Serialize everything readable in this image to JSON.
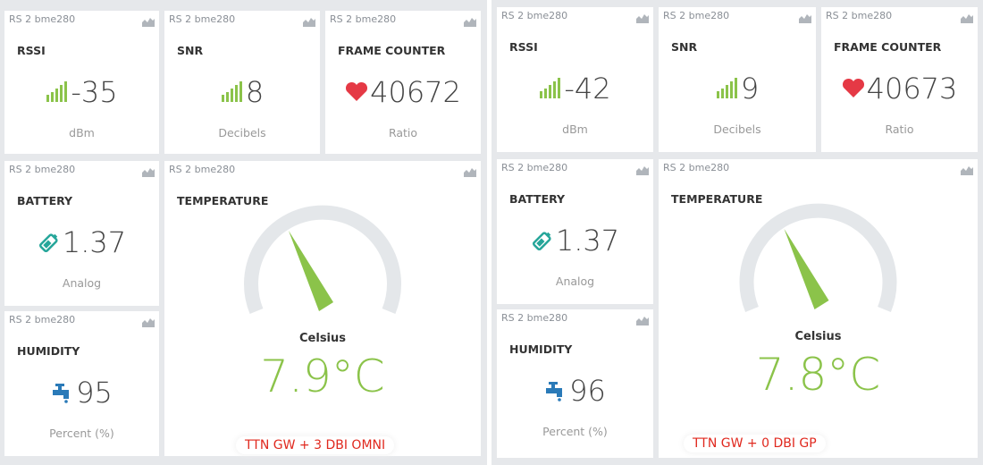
{
  "panels": [
    {
      "widgets": [
        {
          "source": "RS 2 bme280",
          "title": "RSSI",
          "value": "-35",
          "unit": "dBm"
        },
        {
          "source": "RS 2 bme280",
          "title": "SNR",
          "value": "8",
          "unit": "Decibels"
        },
        {
          "source": "RS 2 bme280",
          "title": "FRAME COUNTER",
          "value": "40672",
          "unit": "Ratio"
        },
        {
          "source": "RS 2 bme280",
          "title": "BATTERY",
          "value": "1.37",
          "unit": "Analog"
        },
        {
          "source": "RS 2 bme280",
          "title": "HUMIDITY",
          "value": "95",
          "unit": "Percent (%)"
        },
        {
          "source": "RS 2 bme280",
          "title": "TEMPERATURE",
          "value": "7.9°C",
          "unit": "Celsius"
        }
      ],
      "caption": "TTN GW + 3 DBI OMNI"
    },
    {
      "widgets": [
        {
          "source": "RS 2 bme280",
          "title": "RSSI",
          "value": "-42",
          "unit": "dBm"
        },
        {
          "source": "RS 2 bme280",
          "title": "SNR",
          "value": "9",
          "unit": "Decibels"
        },
        {
          "source": "RS 2 bme280",
          "title": "FRAME COUNTER",
          "value": "40673",
          "unit": "Ratio"
        },
        {
          "source": "RS 2 bme280",
          "title": "BATTERY",
          "value": "1.37",
          "unit": "Analog"
        },
        {
          "source": "RS 2 bme280",
          "title": "HUMIDITY",
          "value": "96",
          "unit": "Percent (%)"
        },
        {
          "source": "RS 2 bme280",
          "title": "TEMPERATURE",
          "value": "7.8°C",
          "unit": "Celsius"
        }
      ],
      "caption": "TTN GW +  0 DBI GP"
    }
  ]
}
